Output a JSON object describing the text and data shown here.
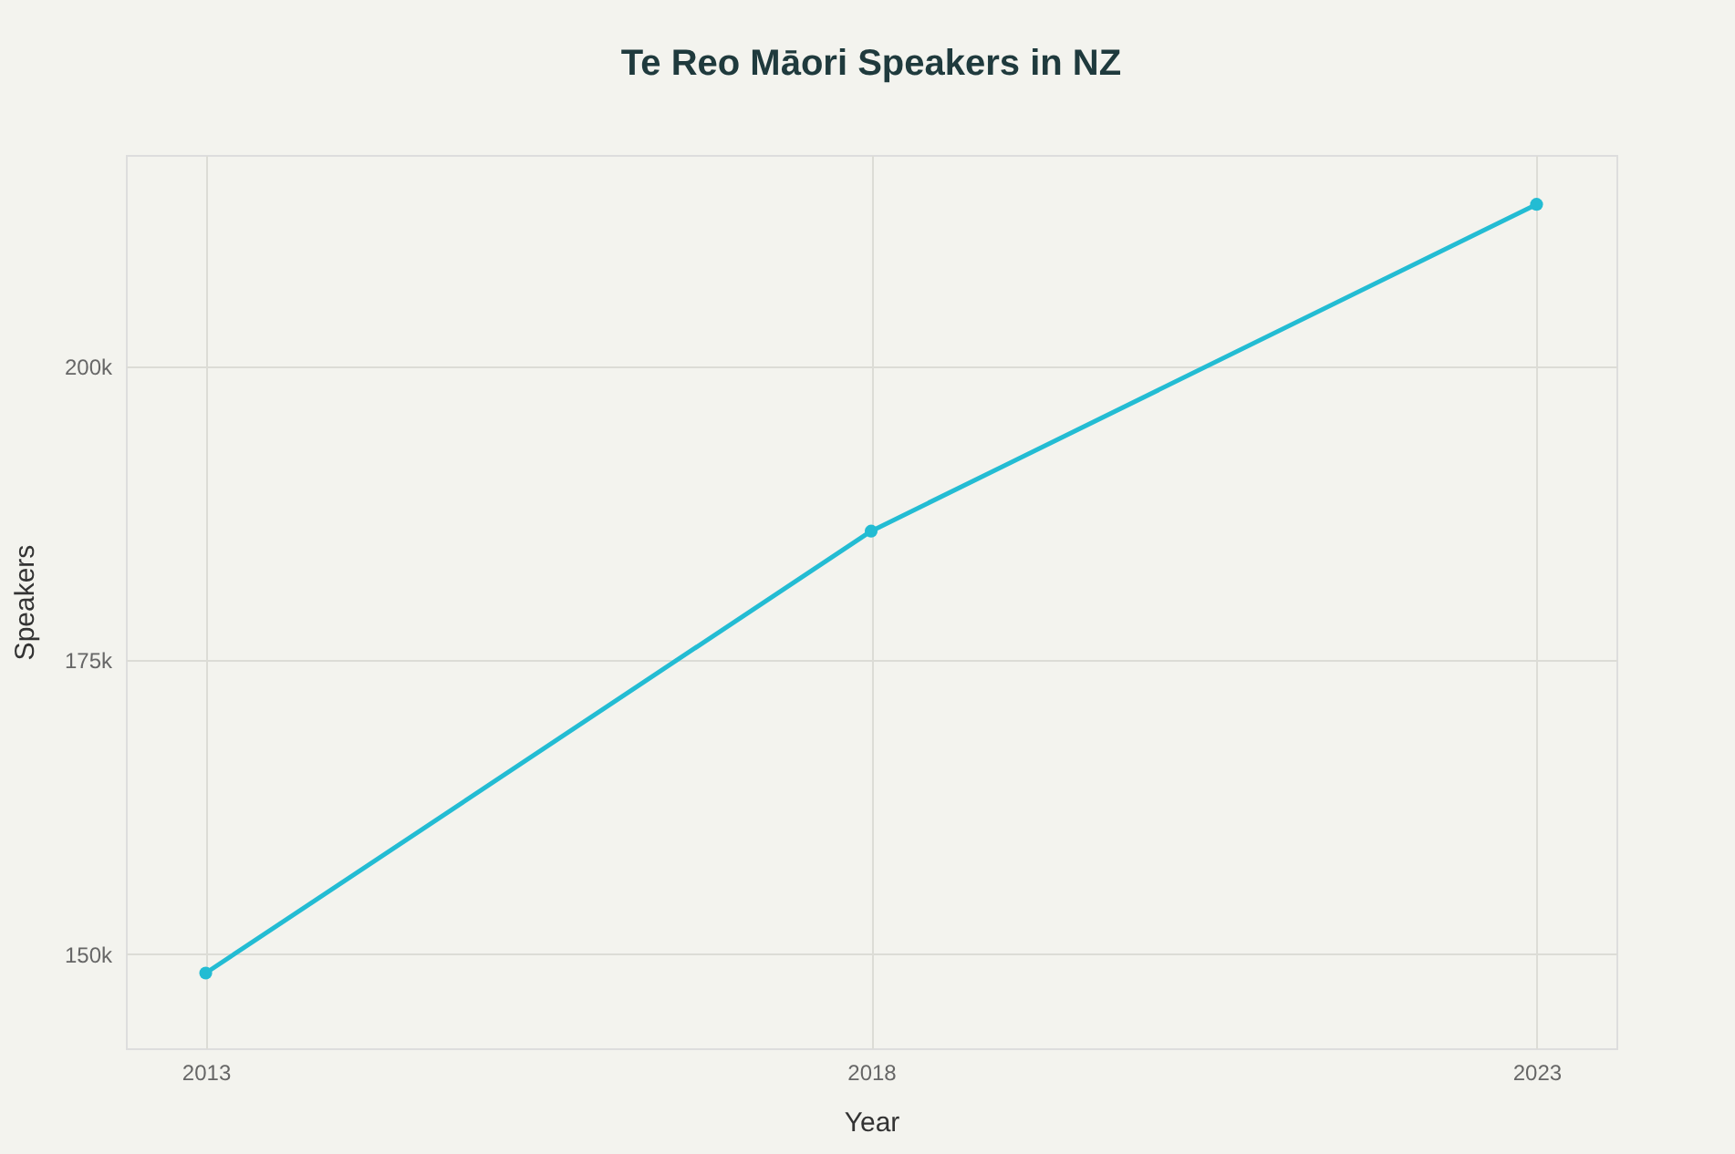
{
  "chart_data": {
    "type": "line",
    "title": "Te Reo Māori Speakers in NZ",
    "xlabel": "Year",
    "ylabel": "Speakers",
    "x": [
      2013,
      2018,
      2023
    ],
    "series": [
      {
        "color": "#23bcd3",
        "values": [
          148400,
          186000,
          213800
        ]
      }
    ],
    "xlim": [
      2012.4,
      2023.6
    ],
    "xticks": [
      2013,
      2018,
      2023
    ],
    "ylim": [
      142000,
      218000
    ],
    "yticks": [
      {
        "value": 150000,
        "label": "150k"
      },
      {
        "value": 175000,
        "label": "175k"
      },
      {
        "value": 200000,
        "label": "200k"
      }
    ],
    "grid": true,
    "marker": "circle",
    "line_style": "solid"
  }
}
